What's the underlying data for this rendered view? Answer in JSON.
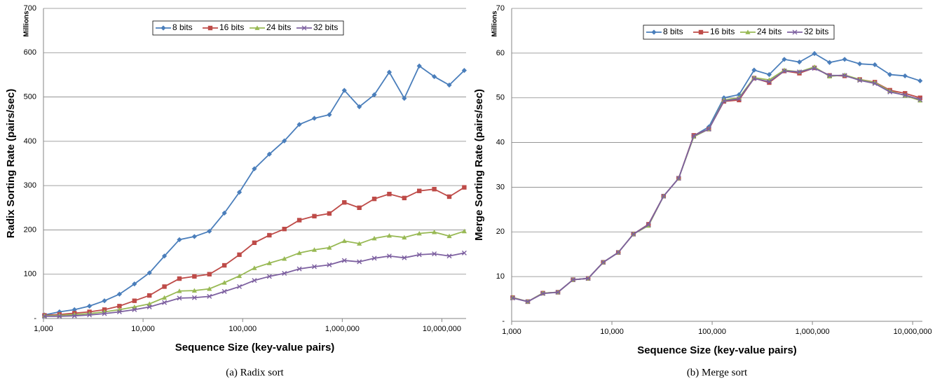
{
  "chart_data": [
    {
      "type": "line",
      "caption": "(a) Radix sort",
      "xlabel": "Sequence Size (key-value pairs)",
      "ylabel": "Radix Sorting Rate (pairs/sec)",
      "y_unit": "Millions",
      "xscale": "log",
      "legend": "top",
      "grid": true,
      "x": [
        1024,
        1448,
        2048,
        2896,
        4096,
        5793,
        8192,
        11585,
        16384,
        23170,
        32768,
        46341,
        65536,
        92682,
        131072,
        185364,
        262144,
        370728,
        524288,
        741455,
        1048576,
        1482910,
        2097152,
        2965821,
        4194304,
        5931642,
        8388608,
        11863283,
        16777216
      ],
      "xlim": [
        1000,
        17500000
      ],
      "xticks": [
        {
          "value": 1000,
          "label": "1,000"
        },
        {
          "value": 10000,
          "label": "10,000"
        },
        {
          "value": 100000,
          "label": "100,000"
        },
        {
          "value": 1000000,
          "label": "1,000,000"
        },
        {
          "value": 10000000,
          "label": "10,000,000"
        }
      ],
      "ylim": [
        0,
        700
      ],
      "yticks": [
        {
          "value": 0,
          "label": "-"
        },
        100,
        200,
        300,
        400,
        500,
        600,
        700
      ],
      "series": [
        {
          "name": "8 bits",
          "color": "#4a7ebb",
          "marker": "diamond",
          "values": [
            8,
            15,
            20,
            28,
            40,
            55,
            78,
            103,
            141,
            178,
            185,
            197,
            238,
            285,
            338,
            371,
            401,
            438,
            452,
            460,
            515,
            478,
            505,
            556,
            497,
            570,
            546,
            527,
            560
          ]
        },
        {
          "name": "16 bits",
          "color": "#be4b48",
          "marker": "square",
          "values": [
            7,
            9,
            12,
            15,
            20,
            28,
            40,
            52,
            72,
            90,
            95,
            100,
            120,
            144,
            171,
            188,
            202,
            222,
            231,
            237,
            262,
            250,
            270,
            281,
            272,
            288,
            292,
            275,
            296
          ]
        },
        {
          "name": "24 bits",
          "color": "#98b954",
          "marker": "triangle",
          "values": [
            6,
            7,
            9,
            11,
            15,
            20,
            26,
            33,
            47,
            62,
            63,
            67,
            81,
            96,
            114,
            125,
            135,
            148,
            155,
            160,
            175,
            169,
            181,
            187,
            183,
            192,
            195,
            186,
            197
          ]
        },
        {
          "name": "32 bits",
          "color": "#7d60a0",
          "marker": "cross",
          "values": [
            5,
            5,
            6,
            8,
            11,
            15,
            20,
            26,
            36,
            46,
            47,
            50,
            61,
            72,
            86,
            95,
            102,
            112,
            117,
            121,
            131,
            128,
            136,
            141,
            137,
            144,
            146,
            141,
            148
          ]
        }
      ]
    },
    {
      "type": "line",
      "caption": "(b) Merge sort",
      "xlabel": "Sequence Size (key-value pairs)",
      "ylabel": "Merge Sorting Rate (pairs/sec)",
      "y_unit": "Millions",
      "xscale": "log",
      "legend": "top",
      "grid": true,
      "x": [
        1024,
        1448,
        2048,
        2896,
        4096,
        5793,
        8192,
        11585,
        16384,
        23170,
        32768,
        46341,
        65536,
        92682,
        131072,
        185364,
        262144,
        370728,
        524288,
        741455,
        1048576,
        1482910,
        2097152,
        2965821,
        4194304,
        5931642,
        8388608,
        11863283
      ],
      "xlim": [
        1000,
        12500000
      ],
      "xticks": [
        {
          "value": 1000,
          "label": "1,000"
        },
        {
          "value": 10000,
          "label": "10,000"
        },
        {
          "value": 100000,
          "label": "100,000"
        },
        {
          "value": 1000000,
          "label": "1,000,000"
        },
        {
          "value": 10000000,
          "label": "10,000,000"
        }
      ],
      "ylim": [
        0,
        70
      ],
      "yticks": [
        {
          "value": 0,
          "label": "-"
        },
        10,
        20,
        30,
        40,
        50,
        60,
        70
      ],
      "series": [
        {
          "name": "8 bits",
          "color": "#4a7ebb",
          "marker": "diamond",
          "values": [
            5.3,
            4.4,
            6.3,
            6.5,
            9.3,
            9.6,
            13.2,
            15.4,
            19.5,
            21.7,
            28,
            32,
            41.5,
            43.5,
            50,
            50.7,
            56.2,
            55.2,
            58.6,
            58,
            59.9,
            57.9,
            58.6,
            57.6,
            57.4,
            55.2,
            54.9,
            53.8
          ]
        },
        {
          "name": "16 bits",
          "color": "#be4b48",
          "marker": "square",
          "values": [
            5.3,
            4.4,
            6.3,
            6.5,
            9.3,
            9.6,
            13.2,
            15.4,
            19.5,
            21.7,
            28,
            32,
            41.6,
            43,
            49.2,
            49.5,
            54.4,
            53.4,
            56,
            55.5,
            56.7,
            55,
            54.9,
            54.1,
            53.5,
            51.7,
            51,
            50
          ]
        },
        {
          "name": "24 bits",
          "color": "#98b954",
          "marker": "triangle",
          "values": [
            5.3,
            4.4,
            6.3,
            6.5,
            9.3,
            9.6,
            13.2,
            15.4,
            19.5,
            21.4,
            28,
            32,
            41.3,
            43,
            49.5,
            50,
            54.5,
            54,
            56.2,
            55.8,
            56.9,
            54.8,
            55.1,
            54.1,
            53.4,
            51.5,
            50.5,
            49.4
          ]
        },
        {
          "name": "32 bits",
          "color": "#7d60a0",
          "marker": "cross",
          "values": [
            5.2,
            4.4,
            6.2,
            6.5,
            9.3,
            9.6,
            13.2,
            15.4,
            19.5,
            21.6,
            28,
            32,
            41.5,
            43,
            49.3,
            49.8,
            54.3,
            53.6,
            56,
            55.8,
            56.6,
            55,
            55,
            53.9,
            53.2,
            51.3,
            50.6,
            49.6
          ]
        }
      ]
    }
  ]
}
